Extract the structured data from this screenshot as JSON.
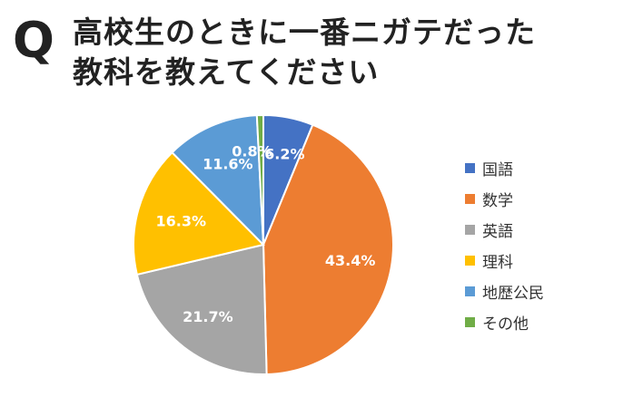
{
  "question_mark": "Q",
  "title": "高校生のときに一番ニガテだった\n教科を教えてください",
  "chart_data": {
    "type": "pie",
    "title": "高校生のときに一番ニガテだった教科を教えてください",
    "start_angle_deg": 0,
    "direction": "clockwise",
    "legend_position": "right",
    "slices": [
      {
        "label": "国語",
        "value": 6.2,
        "value_label": "6.2%",
        "color": "#4472C4"
      },
      {
        "label": "数学",
        "value": 43.4,
        "value_label": "43.4%",
        "color": "#ED7D31"
      },
      {
        "label": "英語",
        "value": 21.7,
        "value_label": "21.7%",
        "color": "#A5A5A5"
      },
      {
        "label": "理科",
        "value": 16.3,
        "value_label": "16.3%",
        "color": "#FFC000"
      },
      {
        "label": "地歴公民",
        "value": 11.6,
        "value_label": "11.6%",
        "color": "#5B9BD5"
      },
      {
        "label": "その他",
        "value": 0.8,
        "value_label": "0.8%",
        "color": "#70AD47"
      }
    ]
  }
}
